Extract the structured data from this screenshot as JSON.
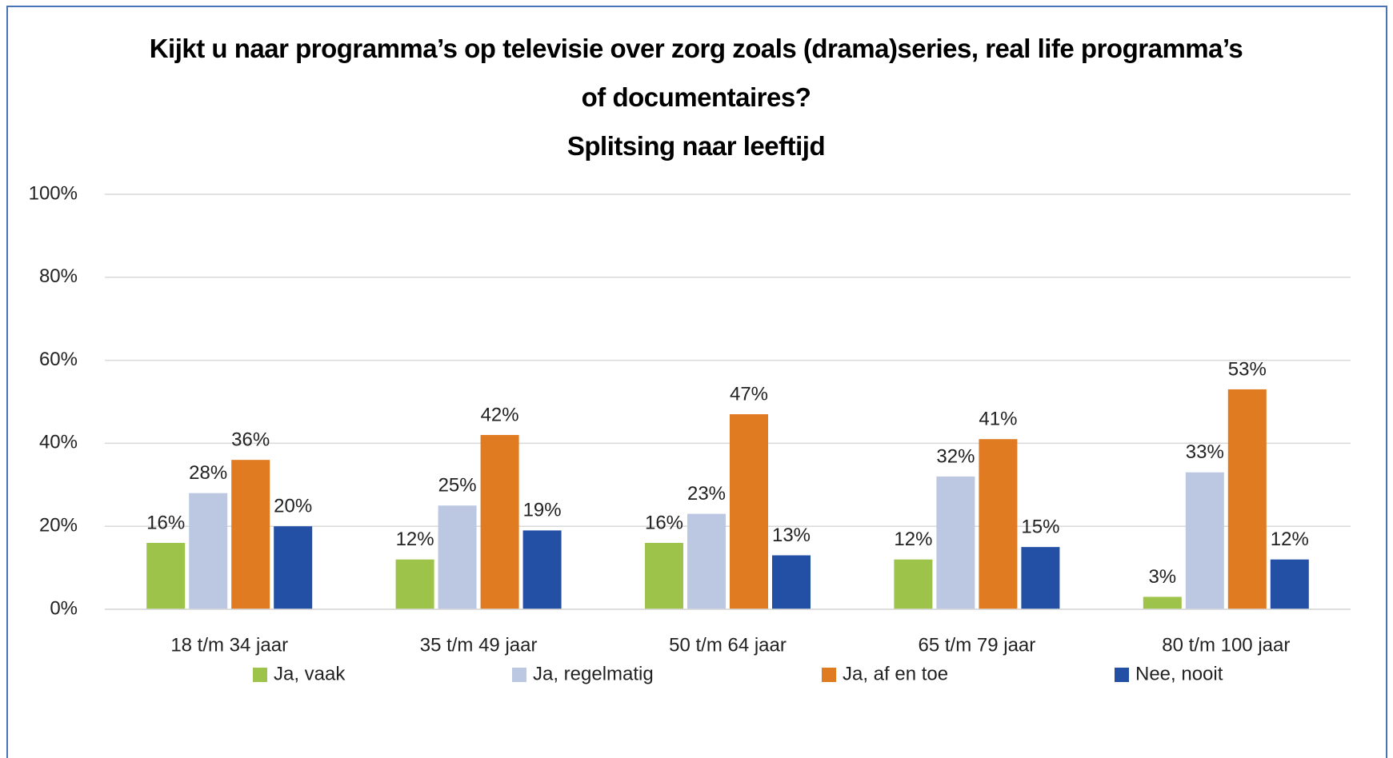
{
  "chart_data": {
    "type": "bar",
    "title": "Kijkt u naar programma’s op televisie over zorg zoals (drama)series, real life programma’s of documentaires?",
    "subtitle": "Splitsing naar leeftijd",
    "categories": [
      "18 t/m 34 jaar",
      "35 t/m 49 jaar",
      "50 t/m 64 jaar",
      "65 t/m 79 jaar",
      "80 t/m 100 jaar"
    ],
    "series": [
      {
        "name": "Ja, vaak",
        "color": "#9dc34a",
        "values": [
          16,
          12,
          16,
          12,
          3
        ],
        "value_labels": [
          "16%",
          "12%",
          "16%",
          "12%",
          "3%"
        ]
      },
      {
        "name": "Ja, regelmatig",
        "color": "#bcc8e1",
        "values": [
          28,
          25,
          23,
          32,
          33
        ],
        "value_labels": [
          "28%",
          "25%",
          "23%",
          "32%",
          "33%"
        ]
      },
      {
        "name": "Ja, af en toe",
        "color": "#e07b22",
        "values": [
          36,
          42,
          47,
          41,
          53
        ],
        "value_labels": [
          "36%",
          "42%",
          "47%",
          "41%",
          "53%"
        ]
      },
      {
        "name": "Nee, nooit",
        "color": "#2350a5",
        "values": [
          20,
          19,
          13,
          15,
          12
        ],
        "value_labels": [
          "20%",
          "19%",
          "13%",
          "15%",
          "12%"
        ]
      }
    ],
    "ylim": [
      0,
      100
    ],
    "yticks": [
      {
        "value": 0,
        "label": "0%"
      },
      {
        "value": 20,
        "label": "20%"
      },
      {
        "value": 40,
        "label": "40%"
      },
      {
        "value": 60,
        "label": "60%"
      },
      {
        "value": 80,
        "label": "80%"
      },
      {
        "value": 100,
        "label": "100%"
      }
    ],
    "grid": true,
    "legend": "bottom"
  }
}
